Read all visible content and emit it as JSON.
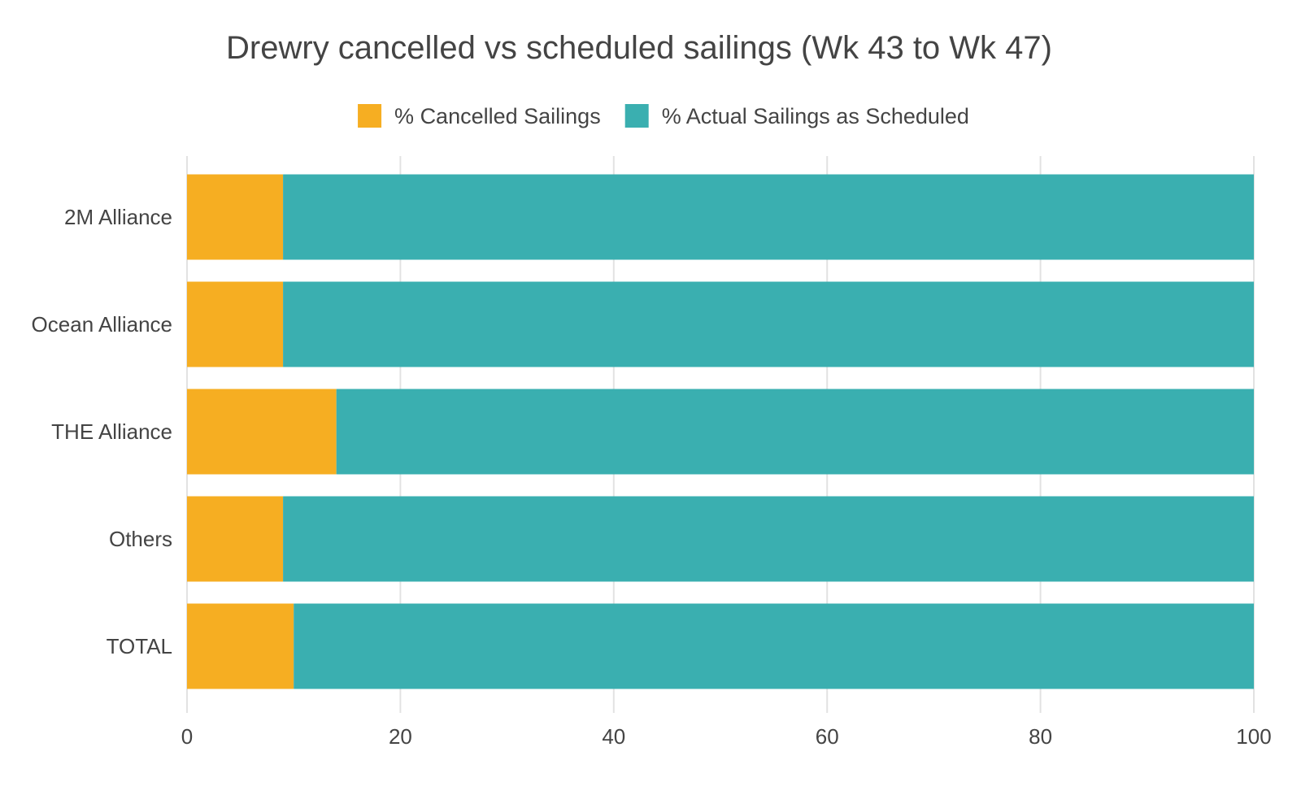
{
  "chart_data": {
    "type": "bar",
    "orientation": "horizontal",
    "stacked": true,
    "title": "Drewry cancelled vs scheduled sailings (Wk 43 to Wk 47)",
    "categories": [
      "2M Alliance",
      "Ocean Alliance",
      "THE Alliance",
      "Others",
      "TOTAL"
    ],
    "series": [
      {
        "name": "% Cancelled Sailings",
        "color": "#F6AE22",
        "values": [
          9,
          9,
          14,
          9,
          10
        ]
      },
      {
        "name": "% Actual Sailings as Scheduled",
        "color": "#3AAFB0",
        "values": [
          91,
          91,
          86,
          91,
          90
        ]
      }
    ],
    "xlim": [
      0,
      100
    ],
    "xticks": [
      0,
      20,
      40,
      60,
      80,
      100
    ],
    "xlabel": "",
    "ylabel": "",
    "grid": true,
    "legend_position": "top"
  }
}
